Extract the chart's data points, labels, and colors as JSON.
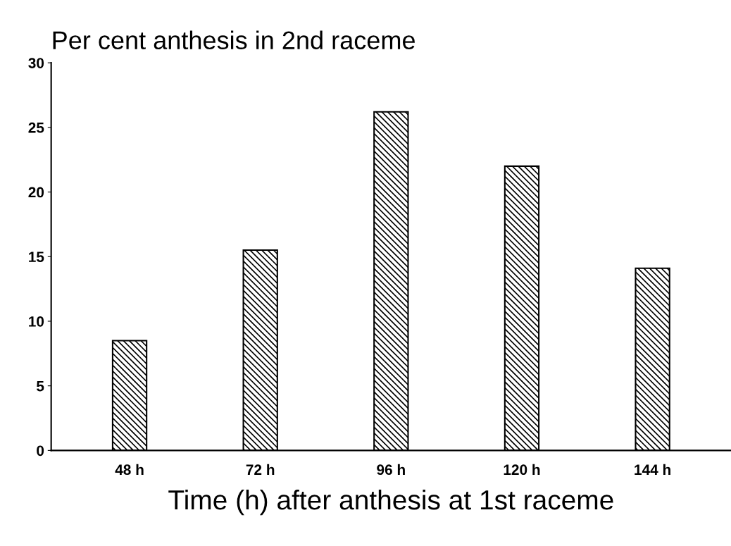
{
  "chart_data": {
    "type": "bar",
    "title": "Per cent anthesis in 2nd raceme",
    "xlabel": "Time (h) after anthesis at 1st raceme",
    "categories": [
      "48 h",
      "72 h",
      "96 h",
      "120 h",
      "144 h"
    ],
    "values": [
      8.5,
      15.5,
      26.2,
      22.0,
      14.1
    ],
    "color": "#000000",
    "ylim": [
      0,
      30
    ],
    "yticks": [
      0,
      5,
      10,
      15,
      20,
      25,
      30
    ],
    "grid": false
  }
}
